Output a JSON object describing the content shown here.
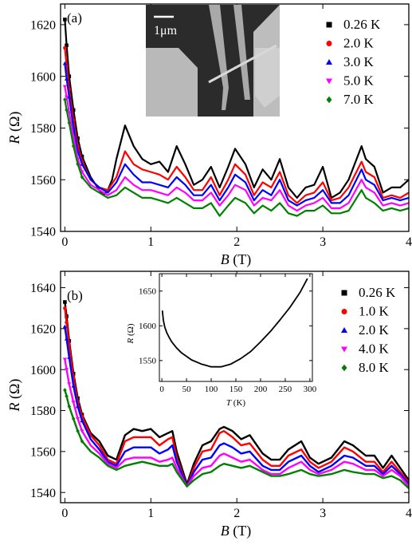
{
  "chart_data": [
    {
      "type": "line",
      "panel_label": "(a)",
      "xlabel_var": "B",
      "xlabel_unit": " (T)",
      "ylabel_var": "R",
      "ylabel_unit": " (Ω)",
      "xlim": [
        -0.05,
        4.0
      ],
      "ylim": [
        1540,
        1628
      ],
      "x_ticks": [
        0,
        1,
        2,
        3,
        4
      ],
      "y_ticks": [
        1540,
        1560,
        1580,
        1600,
        1620
      ],
      "legend_position": "top-right",
      "inset_image": {
        "scale_bar_label": "1μm"
      },
      "series": [
        {
          "name": "0.26 K",
          "color": "#000000",
          "marker": "square",
          "x": [
            0,
            0.02,
            0.05,
            0.1,
            0.15,
            0.2,
            0.3,
            0.4,
            0.45,
            0.5,
            0.55,
            0.6,
            0.7,
            0.8,
            0.9,
            1.0,
            1.1,
            1.2,
            1.3,
            1.4,
            1.5,
            1.6,
            1.7,
            1.8,
            1.9,
            1.98,
            2.1,
            2.2,
            2.3,
            2.4,
            2.5,
            2.6,
            2.7,
            2.8,
            2.9,
            3.0,
            3.1,
            3.2,
            3.3,
            3.45,
            3.5,
            3.6,
            3.7,
            3.8,
            3.9,
            4.0
          ],
          "y": [
            1622,
            1612,
            1600,
            1587,
            1576,
            1569,
            1561,
            1556,
            1554,
            1556,
            1560,
            1568,
            1581,
            1573,
            1568,
            1566,
            1567,
            1563,
            1573,
            1566,
            1558,
            1560,
            1565,
            1557,
            1565,
            1572,
            1566,
            1557,
            1564,
            1560,
            1568,
            1557,
            1553,
            1557,
            1558,
            1565,
            1553,
            1555,
            1560,
            1573,
            1568,
            1565,
            1555,
            1557,
            1557,
            1560
          ]
        },
        {
          "name": "2.0 K",
          "color": "#ff0000",
          "marker": "circle",
          "x": [
            0,
            0.02,
            0.05,
            0.1,
            0.15,
            0.2,
            0.3,
            0.4,
            0.5,
            0.6,
            0.7,
            0.8,
            0.9,
            1.0,
            1.1,
            1.2,
            1.3,
            1.4,
            1.5,
            1.6,
            1.7,
            1.8,
            1.9,
            1.98,
            2.1,
            2.2,
            2.3,
            2.4,
            2.5,
            2.6,
            2.7,
            2.8,
            2.9,
            3.0,
            3.1,
            3.2,
            3.3,
            3.45,
            3.5,
            3.6,
            3.7,
            3.8,
            3.9,
            4.0
          ],
          "y": [
            1611,
            1604,
            1595,
            1583,
            1573,
            1567,
            1560,
            1557,
            1556,
            1561,
            1571,
            1566,
            1564,
            1563,
            1562,
            1560,
            1565,
            1561,
            1556,
            1556,
            1561,
            1554,
            1560,
            1566,
            1562,
            1554,
            1559,
            1557,
            1563,
            1554,
            1551,
            1554,
            1555,
            1559,
            1552,
            1553,
            1557,
            1567,
            1563,
            1561,
            1553,
            1554,
            1553,
            1555
          ]
        },
        {
          "name": "3.0 K",
          "color": "#0000ff",
          "marker": "triangle-up",
          "x": [
            0,
            0.02,
            0.05,
            0.1,
            0.15,
            0.2,
            0.3,
            0.4,
            0.5,
            0.6,
            0.7,
            0.8,
            0.9,
            1.0,
            1.1,
            1.2,
            1.3,
            1.4,
            1.5,
            1.6,
            1.7,
            1.8,
            1.9,
            1.98,
            2.1,
            2.2,
            2.3,
            2.4,
            2.5,
            2.6,
            2.7,
            2.8,
            2.9,
            3.0,
            3.1,
            3.2,
            3.3,
            3.45,
            3.5,
            3.6,
            3.7,
            3.8,
            3.9,
            4.0
          ],
          "y": [
            1605,
            1599,
            1592,
            1580,
            1571,
            1566,
            1560,
            1557,
            1555,
            1559,
            1566,
            1562,
            1559,
            1559,
            1558,
            1557,
            1561,
            1558,
            1554,
            1554,
            1558,
            1552,
            1557,
            1562,
            1559,
            1552,
            1556,
            1554,
            1560,
            1552,
            1550,
            1552,
            1553,
            1556,
            1551,
            1551,
            1554,
            1564,
            1560,
            1558,
            1552,
            1553,
            1552,
            1553
          ]
        },
        {
          "name": "5.0 K",
          "color": "#ff00ff",
          "marker": "triangle-down",
          "x": [
            0,
            0.02,
            0.05,
            0.1,
            0.15,
            0.2,
            0.3,
            0.4,
            0.5,
            0.6,
            0.7,
            0.8,
            0.9,
            1.0,
            1.1,
            1.2,
            1.3,
            1.4,
            1.5,
            1.6,
            1.7,
            1.8,
            1.9,
            1.98,
            2.1,
            2.2,
            2.3,
            2.4,
            2.5,
            2.6,
            2.7,
            2.8,
            2.9,
            3.0,
            3.1,
            3.2,
            3.3,
            3.45,
            3.5,
            3.6,
            3.7,
            3.8,
            3.9,
            4.0
          ],
          "y": [
            1596,
            1592,
            1586,
            1576,
            1568,
            1563,
            1558,
            1556,
            1554,
            1556,
            1561,
            1558,
            1556,
            1556,
            1555,
            1554,
            1557,
            1555,
            1552,
            1552,
            1555,
            1550,
            1554,
            1558,
            1556,
            1550,
            1553,
            1552,
            1556,
            1550,
            1548,
            1550,
            1551,
            1553,
            1549,
            1549,
            1551,
            1560,
            1557,
            1555,
            1550,
            1551,
            1550,
            1551
          ]
        },
        {
          "name": "7.0 K",
          "color": "#008000",
          "marker": "diamond",
          "x": [
            0,
            0.02,
            0.05,
            0.1,
            0.15,
            0.2,
            0.3,
            0.4,
            0.5,
            0.6,
            0.7,
            0.8,
            0.9,
            1.0,
            1.1,
            1.2,
            1.3,
            1.4,
            1.5,
            1.6,
            1.7,
            1.8,
            1.9,
            1.98,
            2.1,
            2.2,
            2.3,
            2.4,
            2.5,
            2.6,
            2.7,
            2.8,
            2.9,
            3.0,
            3.1,
            3.2,
            3.3,
            3.45,
            3.5,
            3.6,
            3.7,
            3.8,
            3.9,
            4.0
          ],
          "y": [
            1591,
            1587,
            1582,
            1573,
            1566,
            1561,
            1557,
            1555,
            1553,
            1554,
            1557,
            1555,
            1553,
            1553,
            1552,
            1551,
            1553,
            1551,
            1549,
            1549,
            1551,
            1546,
            1550,
            1553,
            1551,
            1547,
            1550,
            1548,
            1551,
            1547,
            1546,
            1548,
            1548,
            1550,
            1547,
            1547,
            1548,
            1556,
            1553,
            1551,
            1548,
            1549,
            1548,
            1549
          ]
        }
      ]
    },
    {
      "type": "line",
      "panel_label": "(b)",
      "xlabel_var": "B",
      "xlabel_unit": " (T)",
      "ylabel_var": "R",
      "ylabel_unit": " (Ω)",
      "xlim": [
        -0.05,
        4.0
      ],
      "ylim": [
        1535,
        1648
      ],
      "x_ticks": [
        0,
        1,
        2,
        3,
        4
      ],
      "y_ticks": [
        1540,
        1560,
        1580,
        1600,
        1620,
        1640
      ],
      "legend_position": "top-right",
      "series": [
        {
          "name": "0.26 K",
          "color": "#000000",
          "marker": "square",
          "x": [
            0,
            0.02,
            0.05,
            0.1,
            0.15,
            0.2,
            0.3,
            0.4,
            0.5,
            0.6,
            0.7,
            0.8,
            0.9,
            1.0,
            1.1,
            1.2,
            1.25,
            1.3,
            1.42,
            1.5,
            1.6,
            1.7,
            1.8,
            1.85,
            1.95,
            2.05,
            2.15,
            2.3,
            2.4,
            2.5,
            2.6,
            2.75,
            2.85,
            2.95,
            3.1,
            3.25,
            3.35,
            3.5,
            3.6,
            3.7,
            3.8,
            3.9,
            4.0
          ],
          "y": [
            1633,
            1626,
            1614,
            1598,
            1586,
            1578,
            1569,
            1565,
            1558,
            1556,
            1568,
            1571,
            1570,
            1571,
            1567,
            1569,
            1570,
            1560,
            1544,
            1554,
            1563,
            1565,
            1571,
            1572,
            1570,
            1566,
            1568,
            1559,
            1556,
            1556,
            1561,
            1565,
            1557,
            1554,
            1557,
            1565,
            1563,
            1558,
            1558,
            1552,
            1558,
            1552,
            1546
          ]
        },
        {
          "name": "1.0 K",
          "color": "#ff0000",
          "marker": "circle",
          "x": [
            0,
            0.02,
            0.05,
            0.1,
            0.15,
            0.2,
            0.3,
            0.4,
            0.5,
            0.6,
            0.7,
            0.8,
            0.9,
            1.0,
            1.1,
            1.2,
            1.25,
            1.3,
            1.42,
            1.5,
            1.6,
            1.7,
            1.8,
            1.85,
            1.95,
            2.05,
            2.15,
            2.3,
            2.4,
            2.5,
            2.6,
            2.75,
            2.85,
            2.95,
            3.1,
            3.25,
            3.35,
            3.5,
            3.6,
            3.7,
            3.8,
            3.9,
            4.0
          ],
          "y": [
            1630,
            1623,
            1612,
            1596,
            1584,
            1577,
            1568,
            1563,
            1556,
            1554,
            1565,
            1567,
            1567,
            1567,
            1563,
            1566,
            1567,
            1557,
            1543,
            1552,
            1560,
            1561,
            1569,
            1570,
            1567,
            1563,
            1564,
            1556,
            1553,
            1553,
            1558,
            1561,
            1555,
            1552,
            1555,
            1562,
            1560,
            1555,
            1555,
            1550,
            1555,
            1550,
            1545
          ]
        },
        {
          "name": "2.0 K",
          "color": "#0000ff",
          "marker": "triangle-up",
          "x": [
            0,
            0.02,
            0.05,
            0.1,
            0.15,
            0.2,
            0.3,
            0.4,
            0.5,
            0.6,
            0.7,
            0.8,
            0.9,
            1.0,
            1.1,
            1.2,
            1.25,
            1.3,
            1.42,
            1.5,
            1.6,
            1.7,
            1.8,
            1.85,
            1.95,
            2.05,
            2.15,
            2.3,
            2.4,
            2.5,
            2.6,
            2.75,
            2.85,
            2.95,
            3.1,
            3.25,
            3.35,
            3.5,
            3.6,
            3.7,
            3.8,
            3.9,
            4.0
          ],
          "y": [
            1621,
            1615,
            1606,
            1592,
            1582,
            1575,
            1566,
            1561,
            1555,
            1553,
            1560,
            1562,
            1562,
            1562,
            1559,
            1561,
            1563,
            1555,
            1543,
            1550,
            1556,
            1557,
            1563,
            1564,
            1562,
            1559,
            1560,
            1553,
            1551,
            1551,
            1555,
            1558,
            1553,
            1550,
            1553,
            1558,
            1557,
            1553,
            1553,
            1549,
            1553,
            1549,
            1544
          ]
        },
        {
          "name": "4.0 K",
          "color": "#ff00ff",
          "marker": "triangle-down",
          "x": [
            0,
            0.02,
            0.05,
            0.1,
            0.15,
            0.2,
            0.3,
            0.4,
            0.5,
            0.6,
            0.7,
            0.8,
            0.9,
            1.0,
            1.1,
            1.2,
            1.25,
            1.3,
            1.42,
            1.5,
            1.6,
            1.7,
            1.8,
            1.85,
            1.95,
            2.05,
            2.15,
            2.3,
            2.4,
            2.5,
            2.6,
            2.75,
            2.85,
            2.95,
            3.1,
            3.25,
            3.35,
            3.5,
            3.6,
            3.7,
            3.8,
            3.9,
            4.0
          ],
          "y": [
            1605,
            1600,
            1593,
            1584,
            1576,
            1570,
            1563,
            1559,
            1554,
            1552,
            1556,
            1557,
            1557,
            1557,
            1555,
            1556,
            1557,
            1552,
            1543,
            1548,
            1552,
            1553,
            1558,
            1559,
            1557,
            1555,
            1556,
            1551,
            1549,
            1549,
            1552,
            1555,
            1551,
            1549,
            1551,
            1555,
            1554,
            1551,
            1551,
            1548,
            1551,
            1548,
            1543
          ]
        },
        {
          "name": "8.0 K",
          "color": "#008000",
          "marker": "diamond",
          "x": [
            0,
            0.02,
            0.05,
            0.1,
            0.15,
            0.2,
            0.3,
            0.4,
            0.5,
            0.6,
            0.7,
            0.8,
            0.9,
            1.0,
            1.1,
            1.2,
            1.25,
            1.3,
            1.42,
            1.5,
            1.6,
            1.7,
            1.8,
            1.85,
            1.95,
            2.05,
            2.15,
            2.3,
            2.4,
            2.5,
            2.6,
            2.75,
            2.85,
            2.95,
            3.1,
            3.25,
            3.35,
            3.5,
            3.6,
            3.7,
            3.8,
            3.9,
            4.0
          ],
          "y": [
            1590,
            1587,
            1582,
            1576,
            1570,
            1565,
            1560,
            1557,
            1553,
            1551,
            1553,
            1554,
            1555,
            1554,
            1553,
            1553,
            1554,
            1550,
            1543,
            1546,
            1549,
            1550,
            1553,
            1554,
            1553,
            1552,
            1553,
            1550,
            1548,
            1548,
            1549,
            1551,
            1549,
            1548,
            1549,
            1551,
            1550,
            1549,
            1549,
            1547,
            1548,
            1546,
            1542
          ]
        }
      ],
      "inset": {
        "type": "line",
        "xlabel_var": "T",
        "xlabel_unit": " (K)",
        "ylabel_var": "R",
        "ylabel_unit": " (Ω)",
        "xlim": [
          -5,
          305
        ],
        "ylim": [
          1520,
          1675
        ],
        "x_ticks": [
          0,
          50,
          100,
          150,
          200,
          250,
          300
        ],
        "y_ticks": [
          1550,
          1600,
          1650
        ],
        "series": [
          {
            "name": "",
            "color": "#000000",
            "x": [
              1,
              3,
              6,
              10,
              15,
              20,
              30,
              40,
              50,
              60,
              80,
              100,
              120,
              140,
              160,
              180,
              200,
              220,
              240,
              260,
              280,
              295
            ],
            "y": [
              1622,
              1608,
              1598,
              1590,
              1583,
              1577,
              1568,
              1561,
              1556,
              1551,
              1545,
              1541,
              1541,
              1545,
              1553,
              1563,
              1577,
              1592,
              1609,
              1627,
              1648,
              1668
            ]
          }
        ]
      }
    }
  ]
}
